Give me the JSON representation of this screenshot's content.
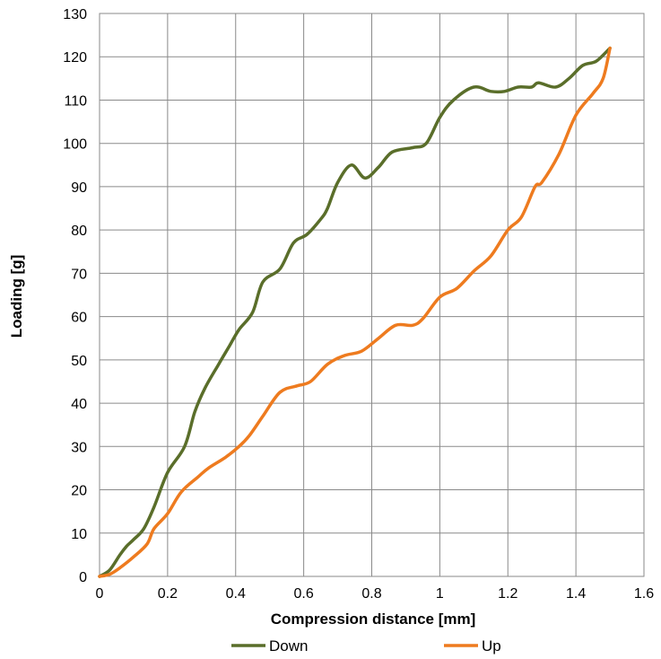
{
  "chart_data": {
    "type": "line",
    "title": "",
    "xlabel": "Compression distance [mm]",
    "ylabel": "Loading [g]",
    "xlim": [
      0,
      1.6
    ],
    "ylim": [
      0,
      130
    ],
    "xticks": [
      0,
      0.2,
      0.4,
      0.6,
      0.8,
      1,
      1.2,
      1.4,
      1.6
    ],
    "yticks": [
      0,
      10,
      20,
      30,
      40,
      50,
      60,
      70,
      80,
      90,
      100,
      110,
      120,
      130
    ],
    "grid": true,
    "legend_position": "bottom",
    "series": [
      {
        "name": "Down",
        "color": "#5a6e2a",
        "points": [
          [
            0,
            0
          ],
          [
            0.03,
            1.5
          ],
          [
            0.06,
            5
          ],
          [
            0.08,
            7
          ],
          [
            0.1,
            8.5
          ],
          [
            0.13,
            11
          ],
          [
            0.16,
            16
          ],
          [
            0.2,
            24
          ],
          [
            0.25,
            30
          ],
          [
            0.28,
            38
          ],
          [
            0.31,
            43.5
          ],
          [
            0.35,
            49
          ],
          [
            0.38,
            53
          ],
          [
            0.41,
            57
          ],
          [
            0.45,
            61
          ],
          [
            0.48,
            68
          ],
          [
            0.53,
            71
          ],
          [
            0.57,
            77
          ],
          [
            0.61,
            79
          ],
          [
            0.65,
            82.5
          ],
          [
            0.67,
            85
          ],
          [
            0.7,
            91
          ],
          [
            0.74,
            95
          ],
          [
            0.78,
            92
          ],
          [
            0.82,
            94.5
          ],
          [
            0.86,
            98
          ],
          [
            0.92,
            99
          ],
          [
            0.96,
            100
          ],
          [
            1.0,
            106
          ],
          [
            1.04,
            110
          ],
          [
            1.1,
            113
          ],
          [
            1.15,
            112
          ],
          [
            1.19,
            112
          ],
          [
            1.23,
            113
          ],
          [
            1.27,
            113
          ],
          [
            1.29,
            114
          ],
          [
            1.34,
            113
          ],
          [
            1.38,
            115
          ],
          [
            1.42,
            118
          ],
          [
            1.46,
            119
          ],
          [
            1.5,
            122
          ]
        ]
      },
      {
        "name": "Up",
        "color": "#ee7b1f",
        "points": [
          [
            0,
            0
          ],
          [
            0.03,
            0.5
          ],
          [
            0.06,
            2
          ],
          [
            0.1,
            4.5
          ],
          [
            0.14,
            7.5
          ],
          [
            0.16,
            11
          ],
          [
            0.2,
            14.5
          ],
          [
            0.24,
            19.5
          ],
          [
            0.29,
            23
          ],
          [
            0.32,
            25
          ],
          [
            0.37,
            27.5
          ],
          [
            0.41,
            30
          ],
          [
            0.44,
            32.5
          ],
          [
            0.48,
            37
          ],
          [
            0.53,
            42.5
          ],
          [
            0.58,
            44
          ],
          [
            0.62,
            45
          ],
          [
            0.67,
            49
          ],
          [
            0.72,
            51
          ],
          [
            0.77,
            52
          ],
          [
            0.82,
            55
          ],
          [
            0.87,
            58
          ],
          [
            0.92,
            58
          ],
          [
            0.95,
            59.5
          ],
          [
            1.0,
            64.5
          ],
          [
            1.05,
            66.5
          ],
          [
            1.1,
            70.5
          ],
          [
            1.15,
            74
          ],
          [
            1.2,
            80
          ],
          [
            1.24,
            83
          ],
          [
            1.28,
            90
          ],
          [
            1.3,
            91
          ],
          [
            1.35,
            97.5
          ],
          [
            1.4,
            106.5
          ],
          [
            1.45,
            111.5
          ],
          [
            1.48,
            115
          ],
          [
            1.5,
            122
          ]
        ]
      }
    ]
  }
}
